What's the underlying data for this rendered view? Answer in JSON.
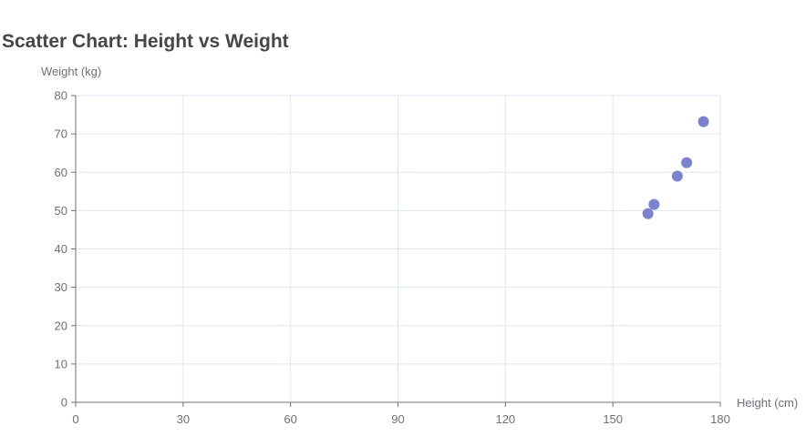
{
  "chart_data": {
    "type": "scatter",
    "title": "Scatter Chart: Height vs Weight",
    "xlabel": "Height (cm)",
    "ylabel": "Weight (kg)",
    "xlim": [
      0,
      180
    ],
    "ylim": [
      0,
      80
    ],
    "x_ticks": [
      0,
      30,
      60,
      90,
      120,
      150,
      180
    ],
    "y_ticks": [
      0,
      10,
      20,
      30,
      40,
      50,
      60,
      70,
      80
    ],
    "grid": true,
    "points": [
      {
        "x": 159.8,
        "y": 49.2
      },
      {
        "x": 161.5,
        "y": 51.6
      },
      {
        "x": 168.0,
        "y": 59.0
      },
      {
        "x": 170.6,
        "y": 62.5
      },
      {
        "x": 175.3,
        "y": 73.2
      }
    ],
    "point_color": "#7b83d0",
    "grid_color": "#e0e6f1",
    "axis_color": "#6e7079"
  }
}
